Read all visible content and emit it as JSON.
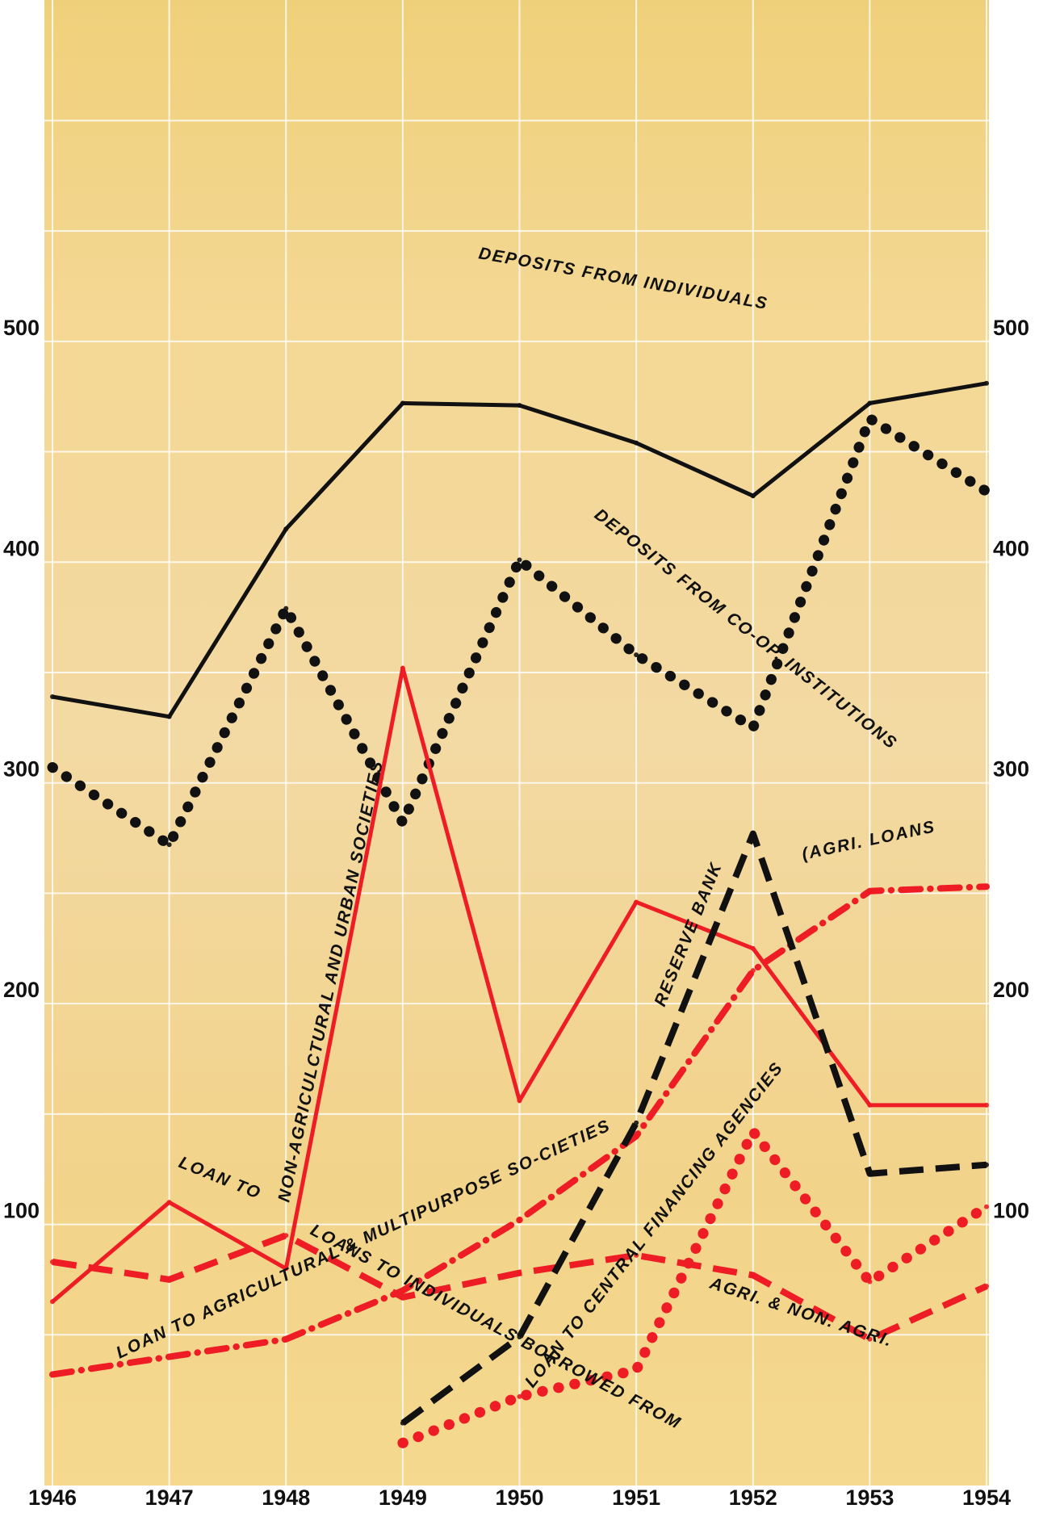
{
  "chart_data": {
    "type": "line",
    "x": [
      1946,
      1947,
      1948,
      1949,
      1950,
      1951,
      1952,
      1953,
      1954
    ],
    "x_tick_labels": [
      "1946",
      "1947",
      "1948",
      "1949",
      "1950",
      "1951",
      "1952",
      "1953",
      "1954"
    ],
    "ylim": [
      0,
      640
    ],
    "y_ticks": [
      100,
      200,
      300,
      400,
      500
    ],
    "y_tick_labels": [
      "100",
      "200",
      "300",
      "400",
      "500"
    ],
    "grid": true,
    "title": "",
    "xlabel": "",
    "ylabel": "",
    "series": [
      {
        "name": "DEPOSITS FROM INDIVIDUALS",
        "color": "#111111",
        "style": "solid",
        "x": [
          1946,
          1947,
          1948,
          1949,
          1950,
          1951,
          1952,
          1953,
          1954
        ],
        "values": [
          339,
          330,
          415,
          472,
          471,
          454,
          430,
          472,
          481
        ]
      },
      {
        "name": "DEPOSITS FROM CO-OP. INSTITUTIONS",
        "color": "#111111",
        "style": "dotted",
        "x": [
          1946,
          1947,
          1948,
          1949,
          1950,
          1951,
          1952,
          1953,
          1954
        ],
        "values": [
          307,
          272,
          379,
          282,
          401,
          358,
          325,
          465,
          432
        ]
      },
      {
        "name": "LOAN TO NON-AGRICULCTURAL AND URBAN SOCIETIES",
        "color": "#ee1c24",
        "style": "solid",
        "x": [
          1946,
          1947,
          1948,
          1949,
          1950,
          1951,
          1952,
          1953,
          1954
        ],
        "values": [
          65,
          110,
          80,
          352,
          156,
          246,
          225,
          154,
          154
        ]
      },
      {
        "name": "LOAN TO AGRICULTURAL & MULTIPURPOSE SOCIETIES",
        "color": "#ee1c24",
        "style": "dashdot",
        "x": [
          1946,
          1947,
          1948,
          1949,
          1950,
          1951,
          1952,
          1953,
          1954
        ],
        "values": [
          32,
          40,
          48,
          70,
          102,
          140,
          215,
          251,
          253
        ]
      },
      {
        "name": "LOANS TO INDIVIDUALS",
        "color": "#ee1c24",
        "style": "dashed",
        "x": [
          1946,
          1947,
          1948,
          1949,
          1950,
          1951,
          1952,
          1953,
          1954
        ],
        "values": [
          83,
          75,
          95,
          67,
          78,
          86,
          77,
          48,
          72
        ]
      },
      {
        "name": "BORROWED FROM RESERVE BANK",
        "color": "#111111",
        "style": "dashed",
        "x": [
          1949,
          1950,
          1951,
          1952,
          1953,
          1954
        ],
        "values": [
          10,
          49,
          146,
          277,
          123,
          127
        ]
      },
      {
        "name": "LOAN TO CENTRAL FINANCING AGENCIES",
        "color": "#ee1c24",
        "style": "dotted",
        "x": [
          1949,
          1950,
          1951,
          1952,
          1953,
          1954
        ],
        "values": [
          1,
          22,
          34,
          142,
          74,
          108
        ]
      }
    ],
    "annotations": [
      {
        "text": "DEPOSITS FROM INDIVIDUALS",
        "color": "#111111"
      },
      {
        "text": "DEPOSITS FROM CO-OP. INSTITUTIONS",
        "color": "#111111"
      },
      {
        "text": "NON-AGRICULCTURAL AND URBAN SOCIETIES",
        "color": "#111111"
      },
      {
        "text": "LOAN TO",
        "color": "#111111"
      },
      {
        "text": "LOAN TO AGRICULTURAL & MULTIPURPOSE SO-CIETIES",
        "color": "#111111"
      },
      {
        "text": "LOANS TO INDIVIDUALS BORROWED FROM",
        "color": "#111111"
      },
      {
        "text": "RESERVE BANK",
        "color": "#111111"
      },
      {
        "text": "(AGRI. LOANS",
        "color": "#111111"
      },
      {
        "text": "LOAN TO CENTRAL FINANCING AGENCIES",
        "color": "#111111"
      },
      {
        "text": "AGRI. & NON. AGRI.",
        "color": "#111111"
      }
    ]
  }
}
